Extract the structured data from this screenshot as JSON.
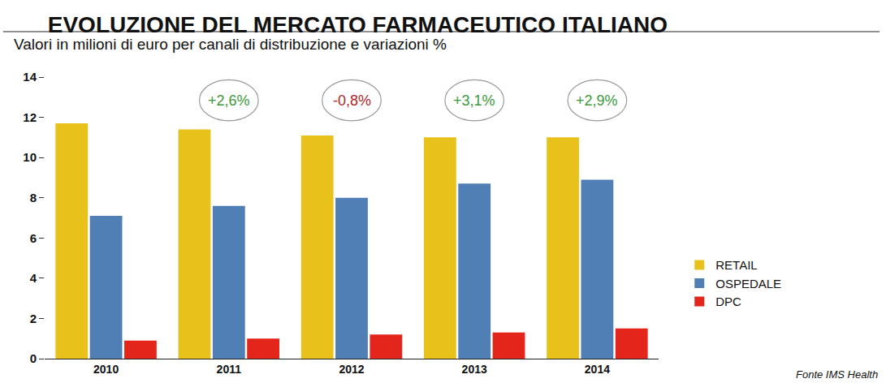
{
  "chart_data": {
    "type": "bar",
    "title": "EVOLUZIONE DEL MERCATO FARMACEUTICO ITALIANO",
    "subtitle": "Valori in milioni di euro per canali di distribuzione e variazioni %",
    "source": "Fonte IMS Health",
    "categories": [
      "2010",
      "2011",
      "2012",
      "2013",
      "2014"
    ],
    "series": [
      {
        "name": "RETAIL",
        "color": "#E8C11A",
        "values": [
          11.7,
          11.4,
          11.1,
          11.0,
          11.0
        ]
      },
      {
        "name": "OSPEDALE",
        "color": "#4F7FB5",
        "values": [
          7.1,
          7.6,
          8.0,
          8.7,
          8.9
        ]
      },
      {
        "name": "DPC",
        "color": "#E3251B",
        "values": [
          0.9,
          1.0,
          1.2,
          1.3,
          1.5
        ]
      }
    ],
    "ylim": [
      0,
      14
    ],
    "yticks": [
      0,
      2,
      4,
      6,
      8,
      10,
      12,
      14
    ],
    "grid": false,
    "legend": "right",
    "annotations": [
      {
        "category": "2011",
        "text": "+2,6%",
        "color": "#3C9A3C"
      },
      {
        "category": "2012",
        "text": "-0,8%",
        "color": "#B0252A"
      },
      {
        "category": "2013",
        "text": "+3,1%",
        "color": "#3C9A3C"
      },
      {
        "category": "2014",
        "text": "+2,9%",
        "color": "#3C9A3C"
      }
    ]
  }
}
